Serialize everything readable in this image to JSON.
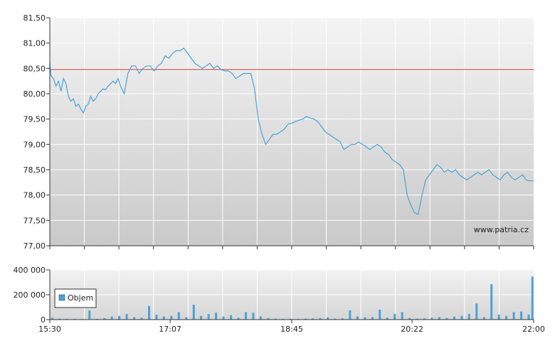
{
  "chart_data": [
    {
      "type": "line",
      "title": "",
      "xlabel": "",
      "ylabel": "",
      "ylim": [
        77.0,
        81.5
      ],
      "y_ticks": [
        "81,50",
        "81,00",
        "80,50",
        "80,00",
        "79,50",
        "79,00",
        "78,50",
        "78,00",
        "77,50",
        "77,00"
      ],
      "y_tick_values": [
        81.5,
        81.0,
        80.5,
        80.0,
        79.5,
        79.0,
        78.5,
        78.0,
        77.5,
        77.0
      ],
      "reference_line": 80.48,
      "reference_color": "#cc3333",
      "line_color": "#4aa3d6",
      "grid": true,
      "watermark": "www.patria.cz",
      "x_range": [
        "15:30",
        "22:00"
      ],
      "series": [
        {
          "x": [
            "15:30",
            "15:31",
            "15:33",
            "15:35",
            "15:37",
            "15:39",
            "15:41",
            "15:43",
            "15:45",
            "15:47",
            "15:49",
            "15:51",
            "15:53",
            "15:55",
            "15:57",
            "15:59",
            "16:01",
            "16:03",
            "16:05",
            "16:07",
            "16:09",
            "16:11",
            "16:13",
            "16:15",
            "16:17",
            "16:19",
            "16:21",
            "16:23",
            "16:25",
            "16:27",
            "16:30",
            "16:33",
            "16:36",
            "16:39",
            "16:42",
            "16:45",
            "16:48",
            "16:51",
            "16:54",
            "16:57",
            "17:00",
            "17:03",
            "17:06",
            "17:09",
            "17:12",
            "17:15",
            "17:18",
            "17:21",
            "17:24",
            "17:27",
            "17:30",
            "17:33",
            "17:36",
            "17:39",
            "17:42",
            "17:45",
            "17:48",
            "17:51",
            "17:54",
            "17:57",
            "18:00",
            "18:03",
            "18:06",
            "18:09",
            "18:12",
            "18:15",
            "18:18",
            "18:21",
            "18:24",
            "18:27",
            "18:30",
            "18:33",
            "18:36",
            "18:39",
            "18:42",
            "18:45",
            "18:48",
            "18:51",
            "18:54",
            "18:57",
            "19:00",
            "19:03",
            "19:06",
            "19:09",
            "19:12",
            "19:15",
            "19:18",
            "19:21",
            "19:24",
            "19:27",
            "19:30",
            "19:33",
            "19:36",
            "19:39",
            "19:42",
            "19:45",
            "19:48",
            "19:51",
            "19:54",
            "19:57",
            "20:00",
            "20:03",
            "20:06",
            "20:09",
            "20:12",
            "20:15",
            "20:18",
            "20:21",
            "20:24",
            "20:27",
            "20:30",
            "20:33",
            "20:36",
            "20:39",
            "20:42",
            "20:45",
            "20:48",
            "20:51",
            "20:54",
            "20:57",
            "21:00",
            "21:03",
            "21:06",
            "21:09",
            "21:12",
            "21:15",
            "21:18",
            "21:21",
            "21:24",
            "21:27",
            "21:30",
            "21:33",
            "21:36",
            "21:39",
            "21:42",
            "21:45",
            "21:48",
            "21:51",
            "21:54",
            "21:57",
            "22:00"
          ],
          "values": [
            80.62,
            80.35,
            80.3,
            80.15,
            80.25,
            80.05,
            80.3,
            80.2,
            79.95,
            79.85,
            79.9,
            79.75,
            79.8,
            79.7,
            79.62,
            79.75,
            79.8,
            79.95,
            79.85,
            79.9,
            80.0,
            80.05,
            80.1,
            80.08,
            80.15,
            80.2,
            80.25,
            80.2,
            80.3,
            80.15,
            80.0,
            80.4,
            80.55,
            80.55,
            80.4,
            80.5,
            80.55,
            80.55,
            80.45,
            80.55,
            80.6,
            80.75,
            80.7,
            80.8,
            80.85,
            80.85,
            80.9,
            80.8,
            80.7,
            80.6,
            80.55,
            80.5,
            80.55,
            80.6,
            80.5,
            80.55,
            80.48,
            80.45,
            80.45,
            80.4,
            80.3,
            80.35,
            80.4,
            80.4,
            80.4,
            80.1,
            79.5,
            79.2,
            79.0,
            79.1,
            79.2,
            79.2,
            79.25,
            79.3,
            79.4,
            79.42,
            79.45,
            79.48,
            79.5,
            79.55,
            79.52,
            79.5,
            79.45,
            79.35,
            79.25,
            79.2,
            79.15,
            79.1,
            79.05,
            78.9,
            78.95,
            79.0,
            79.0,
            79.05,
            79.0,
            78.95,
            78.9,
            78.95,
            79.0,
            78.95,
            78.85,
            78.8,
            78.7,
            78.65,
            78.6,
            78.5,
            78.0,
            77.8,
            77.65,
            77.62,
            78.0,
            78.3,
            78.4,
            78.5,
            78.6,
            78.55,
            78.45,
            78.5,
            78.45,
            78.5,
            78.4,
            78.35,
            78.3,
            78.35,
            78.4,
            78.45,
            78.4,
            78.45,
            78.5,
            78.4,
            78.35,
            78.3,
            78.4,
            78.45,
            78.35,
            78.3,
            78.35,
            78.4,
            78.3,
            78.28,
            78.28
          ]
        }
      ]
    },
    {
      "type": "bar",
      "title": "",
      "xlabel": "",
      "ylabel": "",
      "ylim": [
        0,
        400000
      ],
      "y_ticks": [
        "400 000",
        "200 000",
        "0"
      ],
      "y_tick_values": [
        400000,
        200000,
        0
      ],
      "x_ticks": [
        "15:30",
        "17:07",
        "18:45",
        "20:22",
        "22:00"
      ],
      "bar_color": "#4aa3d6",
      "legend": {
        "label": "Objem",
        "placement": "left"
      },
      "series": [
        {
          "name": "Objem",
          "x": [
            "15:32",
            "15:38",
            "15:44",
            "15:50",
            "15:56",
            "16:02",
            "16:08",
            "16:14",
            "16:20",
            "16:26",
            "16:32",
            "16:38",
            "16:44",
            "16:50",
            "16:56",
            "17:02",
            "17:08",
            "17:14",
            "17:20",
            "17:26",
            "17:32",
            "17:38",
            "17:44",
            "17:50",
            "17:56",
            "18:02",
            "18:08",
            "18:14",
            "18:20",
            "18:26",
            "18:32",
            "18:38",
            "18:44",
            "18:50",
            "18:56",
            "19:02",
            "19:08",
            "19:14",
            "19:20",
            "19:26",
            "19:32",
            "19:38",
            "19:44",
            "19:50",
            "19:56",
            "20:02",
            "20:08",
            "20:14",
            "20:20",
            "20:26",
            "20:32",
            "20:38",
            "20:44",
            "20:50",
            "20:56",
            "21:02",
            "21:08",
            "21:14",
            "21:20",
            "21:26",
            "21:32",
            "21:38",
            "21:44",
            "21:50",
            "21:56",
            "21:59"
          ],
          "values": [
            15000,
            8000,
            6000,
            5000,
            4000,
            75000,
            6000,
            12000,
            25000,
            30000,
            45000,
            20000,
            15000,
            110000,
            40000,
            25000,
            30000,
            60000,
            20000,
            120000,
            30000,
            45000,
            55000,
            25000,
            35000,
            15000,
            60000,
            55000,
            25000,
            12000,
            8000,
            5000,
            6000,
            5000,
            8000,
            10000,
            12000,
            18000,
            8000,
            10000,
            75000,
            25000,
            18000,
            20000,
            80000,
            15000,
            45000,
            60000,
            12000,
            8000,
            10000,
            15000,
            20000,
            12000,
            25000,
            30000,
            45000,
            130000,
            20000,
            285000,
            40000,
            30000,
            60000,
            65000,
            40000,
            345000
          ]
        }
      ]
    }
  ]
}
